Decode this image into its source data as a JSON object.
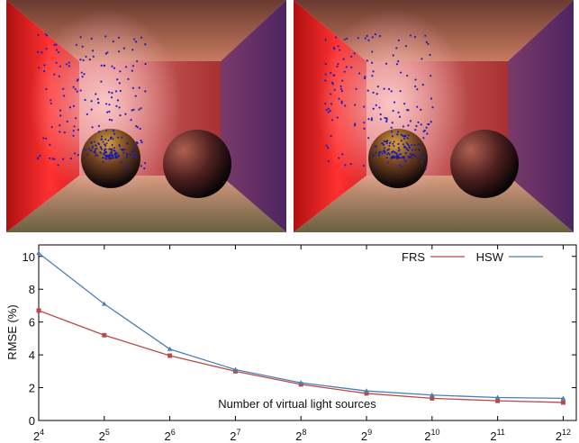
{
  "chart_data": {
    "type": "line",
    "x": [
      16,
      32,
      64,
      128,
      256,
      512,
      1024,
      2048,
      4096
    ],
    "xscale": "log2",
    "xlim": [
      16,
      4705
    ],
    "xticks": [
      {
        "value": 16,
        "base": "2",
        "exponent": "4"
      },
      {
        "value": 32,
        "base": "2",
        "exponent": "5"
      },
      {
        "value": 64,
        "base": "2",
        "exponent": "6"
      },
      {
        "value": 128,
        "base": "2",
        "exponent": "7"
      },
      {
        "value": 256,
        "base": "2",
        "exponent": "8"
      },
      {
        "value": 512,
        "base": "2",
        "exponent": "9"
      },
      {
        "value": 1024,
        "base": "2",
        "exponent": "10"
      },
      {
        "value": 2048,
        "base": "2",
        "exponent": "11"
      },
      {
        "value": 4096,
        "base": "2",
        "exponent": "12"
      }
    ],
    "ylim": [
      0,
      10.7
    ],
    "yticks": [
      0,
      2,
      4,
      6,
      8,
      10
    ],
    "ylabel": "RMSE (%)",
    "annotation": "Number of virtual light sources",
    "legend": "top-right",
    "series": [
      {
        "name": "FRS",
        "color": "#b94a48",
        "marker": "square",
        "values": [
          6.7,
          5.2,
          3.95,
          3.0,
          2.2,
          1.65,
          1.35,
          1.2,
          1.1
        ]
      },
      {
        "name": "HSW",
        "color": "#4a7fb5",
        "marker": "triangle",
        "values": [
          10.2,
          7.1,
          4.35,
          3.1,
          2.3,
          1.8,
          1.55,
          1.4,
          1.35
        ]
      }
    ]
  }
}
